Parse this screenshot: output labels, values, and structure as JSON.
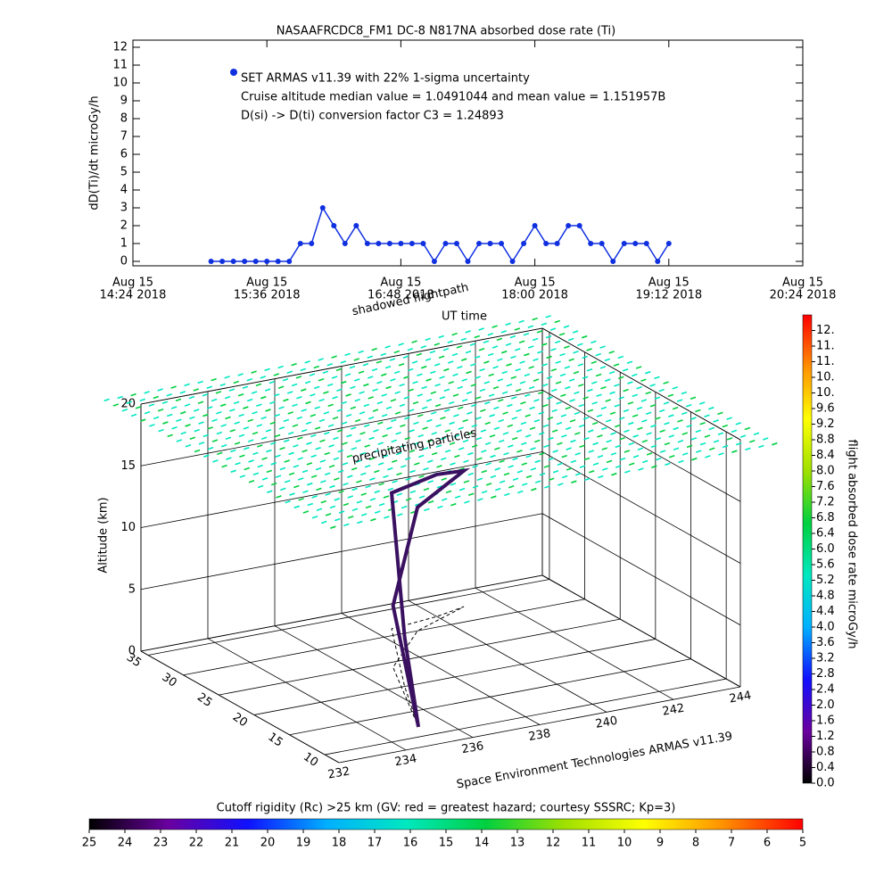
{
  "chart_data": [
    {
      "type": "scatter",
      "title": "NASAAFRCDC8_FM1 DC-8   N817NA absorbed dose rate (Ti)",
      "ylabel": "dD(Ti)/dt microGy/h",
      "x": [
        15.1,
        15.2,
        15.3,
        15.4,
        15.5,
        15.6,
        15.7,
        15.8,
        15.9,
        16.0,
        16.1,
        16.2,
        16.3,
        16.4,
        16.5,
        16.6,
        16.7,
        16.8,
        16.9,
        17.0,
        17.1,
        17.2,
        17.3,
        17.4,
        17.5,
        17.6,
        17.7,
        17.8,
        17.9,
        18.0,
        18.1,
        18.2,
        18.3,
        18.4,
        18.5,
        18.6,
        18.7,
        18.8,
        18.9,
        19.0,
        19.1,
        19.2
      ],
      "values": [
        0,
        0,
        0,
        0,
        0,
        0,
        0,
        0,
        1,
        1,
        3,
        2,
        1,
        2,
        1,
        1,
        1,
        1,
        1,
        1,
        0,
        1,
        1,
        0,
        1,
        1,
        1,
        0,
        1,
        2,
        1,
        1,
        2,
        2,
        1,
        1,
        0,
        1,
        1,
        1,
        0,
        1
      ],
      "color": "#1030e0",
      "xlim": [
        14.4,
        20.4
      ],
      "xticks": [
        {
          "value": 14.4,
          "label": "Aug 15"
        },
        {
          "value": 15.6,
          "label": "Aug 15"
        },
        {
          "value": 16.8,
          "label": "Aug 15"
        },
        {
          "value": 18.0,
          "label": "Aug 15"
        },
        {
          "value": 19.2,
          "label": "Aug 15"
        },
        {
          "value": 20.4,
          "label": "Aug 15"
        }
      ],
      "xtick_dates": [
        "14:24 2018",
        "15:36 2018",
        "16:48 2018",
        "18:00 2018",
        "19:12 2018",
        "20:24 2018"
      ],
      "ylim": [
        -0.25,
        12.4
      ],
      "yticks": [
        0,
        1,
        2,
        3,
        4,
        5,
        6,
        7,
        8,
        9,
        10,
        11,
        12
      ],
      "annotations": [
        "SET ARMAS v11.39 with 22% 1-sigma uncertainty",
        "Cruise altitude median value = 1.0491044 and mean value = 1.151957B",
        "D(si) -> D(ti) conversion factor C3 = 1.24893"
      ]
    },
    {
      "type": "flightpath3d",
      "ylabel": "Altitude (km)",
      "altlim": [
        0,
        20
      ],
      "altticks": [
        0,
        5,
        10,
        15,
        20
      ],
      "lonlim": [
        232,
        244
      ],
      "lonticks": [
        232,
        234,
        236,
        238,
        240,
        242,
        244
      ],
      "latlim": [
        8,
        36
      ],
      "latticks": [
        10,
        15,
        20,
        25,
        30,
        35
      ],
      "lon": [
        235.2,
        236.5,
        238.5,
        240,
        241,
        239,
        237,
        235.2
      ],
      "lat": [
        11.9,
        20,
        31.3,
        32,
        32.9,
        30,
        24,
        11.9
      ],
      "alt": [
        0,
        4,
        11,
        11.5,
        11,
        10,
        5,
        0
      ],
      "color": "#3a1060",
      "particle_layer_alt": 20,
      "annotations": [
        "shadowed flightpath",
        "UT time",
        "precipitating particles"
      ],
      "credit": "Space Environment Technologies ARMAS v11.39"
    },
    {
      "type": "colorbar",
      "label": "flight absorbed dose rate microGy/h",
      "lim": [
        0,
        12
      ],
      "ticks": [
        {
          "value": 0,
          "label": "0.0"
        },
        {
          "value": 0.4,
          "label": "0.4"
        },
        {
          "value": 0.8,
          "label": "0.8"
        },
        {
          "value": 1.2,
          "label": "1.2"
        },
        {
          "value": 1.6,
          "label": "1.6"
        },
        {
          "value": 2.0,
          "label": "2.0"
        },
        {
          "value": 2.4,
          "label": "2.4"
        },
        {
          "value": 2.8,
          "label": "2.8"
        },
        {
          "value": 3.2,
          "label": "3.2"
        },
        {
          "value": 3.6,
          "label": "3.6"
        },
        {
          "value": 4.0,
          "label": "4.0"
        },
        {
          "value": 4.4,
          "label": "4.4"
        },
        {
          "value": 4.8,
          "label": "4.8"
        },
        {
          "value": 5.2,
          "label": "5.2"
        },
        {
          "value": 5.6,
          "label": "5.6"
        },
        {
          "value": 6.0,
          "label": "6.0"
        },
        {
          "value": 6.4,
          "label": "6.4"
        },
        {
          "value": 6.8,
          "label": "6.8"
        },
        {
          "value": 7.2,
          "label": "7.2"
        },
        {
          "value": 7.6,
          "label": "7.6"
        },
        {
          "value": 8.0,
          "label": "8.0"
        },
        {
          "value": 8.4,
          "label": "8.4"
        },
        {
          "value": 8.8,
          "label": "8.8"
        },
        {
          "value": 9.2,
          "label": "9.2"
        },
        {
          "value": 9.6,
          "label": "9.6"
        },
        {
          "value": 10.0,
          "label": "10."
        },
        {
          "value": 10.4,
          "label": "10."
        },
        {
          "value": 10.8,
          "label": "11."
        },
        {
          "value": 11.2,
          "label": "11."
        },
        {
          "value": 11.6,
          "label": "12."
        }
      ],
      "colormap": [
        "#000000",
        "#6a00a0",
        "#1010ff",
        "#00b0ff",
        "#00e8c0",
        "#00d040",
        "#a0e000",
        "#ffff00",
        "#ff9000",
        "#ff0000"
      ]
    },
    {
      "type": "colorbar",
      "label": "Cutoff rigidity (Rc) >25 km (GV: red = greatest hazard; courtesy SSSRC; Kp=3)",
      "lim": [
        25,
        5
      ],
      "ticks": [
        25,
        24,
        23,
        22,
        21,
        20,
        19,
        18,
        17,
        16,
        15,
        14,
        13,
        12,
        11,
        10,
        9,
        8,
        7,
        6,
        5
      ],
      "colormap": [
        "#000000",
        "#6a00a0",
        "#1010ff",
        "#00b0ff",
        "#00e8c0",
        "#00d040",
        "#a0e000",
        "#ffff00",
        "#ff9000",
        "#ff0000"
      ]
    }
  ]
}
